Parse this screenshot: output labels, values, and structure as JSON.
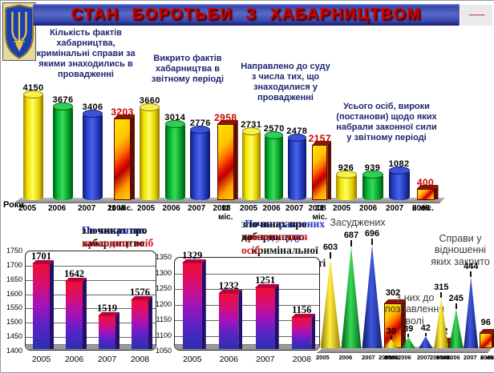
{
  "page_title": "СТАН БОРОТЬБИ З ХАБАРНИЦТВОМ",
  "years_axis_label": "Роки",
  "decor": {
    "squiggle": "~~~~"
  },
  "icons": {
    "emblem": "ukraine-trident"
  },
  "palette": {
    "title_red": "#cf0000",
    "highlight_value": "#cc0000",
    "label_navy": "#1c2670",
    "blue": "#1f35c8",
    "red": "#d01818",
    "black": "#111111",
    "bar_yellow": "#f2e200",
    "bar_green": "#00b62e",
    "bar_blue": "#2741cf",
    "flame_red": "#e81800",
    "platform_gray": "#9a9a9a",
    "banner_blue": "#2c3aa0"
  },
  "chart_data": [
    {
      "id": "in_proceedings",
      "type": "bar",
      "style": "cylinder3d",
      "title": "Кількість фактів хабарництва, кримінальні справи за якими знаходились в провадженні",
      "categories": [
        "2005",
        "2006",
        "2007",
        "11 міс.|2008"
      ],
      "values": [
        4150,
        3676,
        3406,
        3203
      ],
      "highlight_last": true
    },
    {
      "id": "exposed",
      "type": "bar",
      "style": "cylinder3d",
      "title": "Викрито фактів хабарництва в звітному періоді",
      "categories": [
        "2005",
        "2006",
        "2007",
        "11 міс.|2008"
      ],
      "values": [
        3660,
        3014,
        2776,
        2958
      ],
      "highlight_last": true
    },
    {
      "id": "sent_to_court",
      "type": "bar",
      "style": "cylinder3d",
      "title": "Направлено  до суду з числа тих, що знаходилися у провадженні",
      "categories": [
        "2005",
        "2006",
        "2007",
        "11 міс.|2008"
      ],
      "values": [
        2731,
        2570,
        2478,
        2157
      ],
      "highlight_last": true
    },
    {
      "id": "verdicts_in_force",
      "type": "bar",
      "style": "cylinder3d",
      "title": "Усього осіб, вироки (постанови) щодо яких набрали законної сили у звітному періоді",
      "categories": [
        "2005",
        "2006",
        "2007",
        "6 міс.|2008"
      ],
      "values": [
        926,
        939,
        1082,
        400
      ],
      "highlight_last": true
    },
    {
      "id": "persons_in_exposed_crimes",
      "type": "bar",
      "style": "box3d-gradient",
      "title_parts": [
        {
          "text": "По викритих",
          "color": "blue"
        },
        {
          "text": " злочинах про",
          "color": "black"
        },
        {
          "br": true
        },
        {
          "text": "хабарництво ",
          "color": "black"
        },
        {
          "text": "проходить осіб",
          "color": "red"
        }
      ],
      "categories": [
        "2005",
        "2006",
        "2007",
        "2008"
      ],
      "values": [
        1701,
        1642,
        1519,
        1576
      ],
      "ylim": [
        1400,
        1750
      ],
      "ytick_step": 50,
      "grid": true
    },
    {
      "id": "persons_prosecuted",
      "type": "bar",
      "style": "box3d-gradient",
      "title_parts": [
        {
          "text": "По направлених до суду",
          "color": "blue"
        },
        {
          "text": " злочинах про",
          "color": "black"
        },
        {
          "br": true
        },
        {
          "text": "хабарництво ",
          "color": "black"
        },
        {
          "text": "притягується",
          "color": "red"
        },
        {
          "text": " до",
          "color": "black"
        },
        {
          "br": true
        },
        {
          "text": "кримінальної відповідальності ",
          "color": "black"
        },
        {
          "text": "осіб",
          "color": "red"
        }
      ],
      "categories": [
        "2005",
        "2006",
        "2007",
        "2008"
      ],
      "values": [
        1329,
        1232,
        1251,
        1156
      ],
      "ylim": [
        1050,
        1350
      ],
      "ytick_step": 50,
      "grid": true
    },
    {
      "id": "convicted",
      "type": "cone",
      "title": "Засуджених",
      "categories": [
        "2005",
        "2006",
        "2007",
        "6 міс.|2008"
      ],
      "values": [
        603,
        687,
        696,
        302
      ],
      "highlight_last_shape": "flame-box"
    },
    {
      "id": "imprisoned",
      "type": "cone",
      "title": "З них до позбавлення волі",
      "categories": [
        "2005",
        "2006",
        "2007",
        "6 міс.|2008"
      ],
      "values": [
        30,
        39,
        42,
        22
      ],
      "highlight_last_shape": "flame-box"
    },
    {
      "id": "cases_closed",
      "type": "cone",
      "title": "Справи у відношенні яких закрито",
      "categories": [
        "2005",
        "2006",
        "2007",
        "6 міс.|2008"
      ],
      "values": [
        315,
        245,
        444,
        96
      ],
      "highlight_last_shape": "flame-box"
    }
  ]
}
